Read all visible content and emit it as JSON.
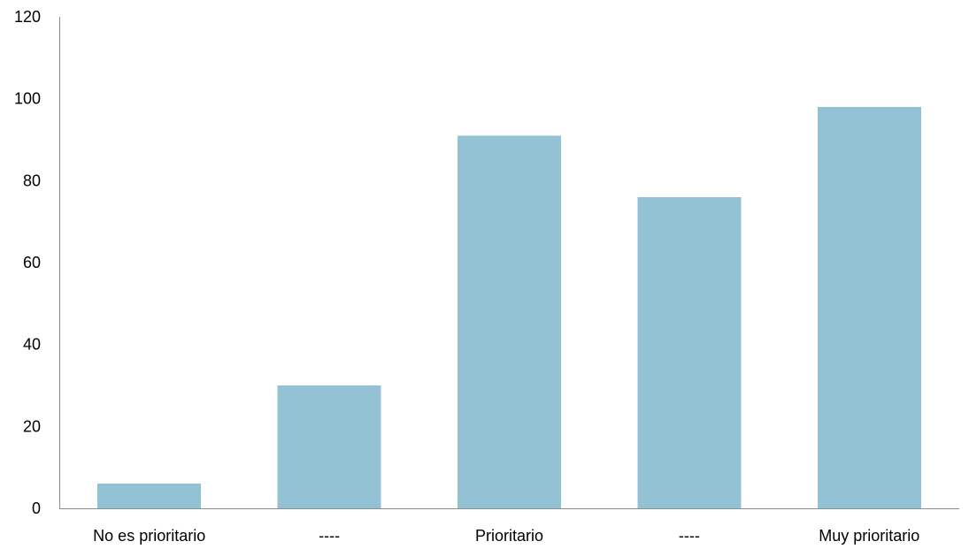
{
  "chart_data": {
    "type": "bar",
    "categories": [
      "No es prioritario",
      "----",
      "Prioritario",
      "----",
      "Muy prioritario"
    ],
    "values": [
      6,
      30,
      91,
      76,
      98
    ],
    "title": "",
    "xlabel": "",
    "ylabel": "",
    "ylim": [
      0,
      120
    ],
    "yticks": [
      0,
      20,
      40,
      60,
      80,
      100,
      120
    ],
    "grid": false,
    "legend": "none",
    "bar_color": "#92c2d3",
    "axis_color": "#8c8c8c"
  }
}
